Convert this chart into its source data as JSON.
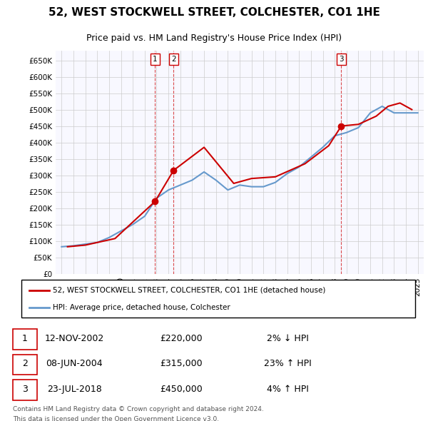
{
  "title": "52, WEST STOCKWELL STREET, COLCHESTER, CO1 1HE",
  "subtitle": "Price paid vs. HM Land Registry's House Price Index (HPI)",
  "ylabel_ticks": [
    "£0",
    "£50K",
    "£100K",
    "£150K",
    "£200K",
    "£250K",
    "£300K",
    "£350K",
    "£400K",
    "£450K",
    "£500K",
    "£550K",
    "£600K",
    "£650K"
  ],
  "ytick_values": [
    0,
    50000,
    100000,
    150000,
    200000,
    250000,
    300000,
    350000,
    400000,
    450000,
    500000,
    550000,
    600000,
    650000
  ],
  "ylim": [
    0,
    680000
  ],
  "background_color": "#ffffff",
  "grid_color": "#cccccc",
  "hpi_color": "#6699cc",
  "price_color": "#cc0000",
  "sale_marker_color": "#cc0000",
  "transactions": [
    {
      "label": "1",
      "date_num": 2002.87,
      "price": 220000,
      "text": "12-NOV-2002",
      "price_str": "£220,000",
      "hpi_str": "2% ↓ HPI"
    },
    {
      "label": "2",
      "date_num": 2004.44,
      "price": 315000,
      "text": "08-JUN-2004",
      "price_str": "£315,000",
      "hpi_str": "23% ↑ HPI"
    },
    {
      "label": "3",
      "date_num": 2018.56,
      "price": 450000,
      "text": "23-JUL-2018",
      "price_str": "£450,000",
      "hpi_str": "4% ↑ HPI"
    }
  ],
  "legend_line1": "52, WEST STOCKWELL STREET, COLCHESTER, CO1 1HE (detached house)",
  "legend_line2": "HPI: Average price, detached house, Colchester",
  "footer1": "Contains HM Land Registry data © Crown copyright and database right 2024.",
  "footer2": "This data is licensed under the Open Government Licence v3.0.",
  "hpi_data": {
    "years": [
      1995,
      1996,
      1997,
      1998,
      1999,
      2000,
      2001,
      2002,
      2003,
      2004,
      2005,
      2006,
      2007,
      2008,
      2009,
      2010,
      2011,
      2012,
      2013,
      2014,
      2015,
      2016,
      2017,
      2018,
      2019,
      2020,
      2021,
      2022,
      2023,
      2024,
      2025
    ],
    "values": [
      82000,
      85000,
      90000,
      95000,
      110000,
      130000,
      150000,
      175000,
      230000,
      255000,
      270000,
      285000,
      310000,
      285000,
      255000,
      270000,
      265000,
      265000,
      278000,
      305000,
      325000,
      355000,
      385000,
      420000,
      430000,
      445000,
      490000,
      510000,
      490000,
      490000,
      490000
    ]
  },
  "price_data": {
    "years": [
      1995.5,
      1997.0,
      1999.5,
      2002.87,
      2004.44,
      2007.0,
      2009.5,
      2011.0,
      2013.0,
      2015.5,
      2017.5,
      2018.56,
      2020.0,
      2021.5,
      2022.5,
      2023.5,
      2024.5
    ],
    "values": [
      82000,
      87000,
      107000,
      220000,
      315000,
      385000,
      275000,
      290000,
      295000,
      335000,
      390000,
      450000,
      455000,
      480000,
      510000,
      520000,
      500000
    ]
  }
}
